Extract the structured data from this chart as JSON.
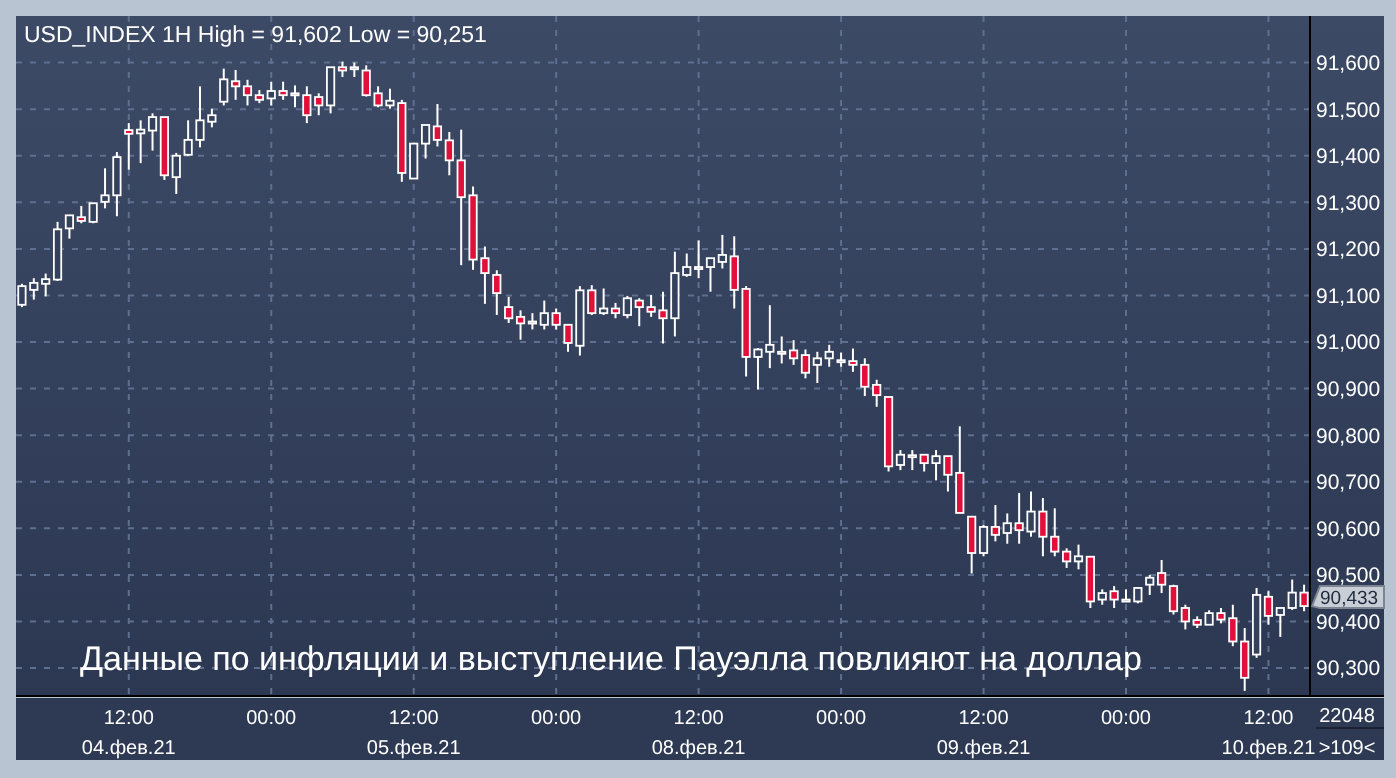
{
  "chart_data": {
    "type": "candlestick",
    "title": "USD_INDEX 1H High = 91,602 Low = 90,251",
    "categories": [
      null,
      null,
      null,
      null,
      null,
      null,
      null,
      null,
      null,
      "12:00\n04.фев.21",
      null,
      null,
      null,
      null,
      null,
      null,
      null,
      null,
      null,
      null,
      null,
      "00:00",
      null,
      null,
      null,
      null,
      null,
      null,
      null,
      null,
      null,
      null,
      null,
      "12:00\n05.фев.21",
      null,
      null,
      null,
      null,
      null,
      null,
      null,
      null,
      null,
      null,
      null,
      "00:00",
      null,
      null,
      null,
      null,
      null,
      null,
      null,
      null,
      null,
      null,
      null,
      "12:00\n08.фев.21",
      null,
      null,
      null,
      null,
      null,
      null,
      null,
      null,
      null,
      null,
      null,
      "00:00",
      null,
      null,
      null,
      null,
      null,
      null,
      null,
      null,
      null,
      null,
      null,
      "12:00\n09.фев.21",
      null,
      null,
      null,
      null,
      null,
      null,
      null,
      null,
      null,
      null,
      null,
      "00:00",
      null,
      null,
      null,
      null,
      null,
      null,
      null,
      null,
      null,
      null,
      null,
      "12:00\n10.фев.21",
      null,
      null,
      null
    ],
    "ohlc": [
      [
        91080,
        91125,
        91075,
        91120
      ],
      [
        91112,
        91137,
        91091,
        91127
      ],
      [
        91125,
        91147,
        91098,
        91135
      ],
      [
        91134,
        91258,
        91131,
        91242
      ],
      [
        91244,
        91273,
        91222,
        91272
      ],
      [
        91268,
        91292,
        91255,
        91260
      ],
      [
        91258,
        91299,
        91255,
        91298
      ],
      [
        91301,
        91373,
        91287,
        91315
      ],
      [
        91315,
        91408,
        91270,
        91397
      ],
      [
        91455,
        91470,
        91370,
        91447
      ],
      [
        91448,
        91476,
        91384,
        91456
      ],
      [
        91454,
        91491,
        91411,
        91483
      ],
      [
        91483,
        91483,
        91348,
        91358
      ],
      [
        91354,
        91406,
        91318,
        91400
      ],
      [
        91402,
        91476,
        91400,
        91434
      ],
      [
        91434,
        91549,
        91418,
        91476
      ],
      [
        91473,
        91501,
        91461,
        91487
      ],
      [
        91516,
        91587,
        91508,
        91564
      ],
      [
        91560,
        91584,
        91520,
        91549
      ],
      [
        91549,
        91563,
        91508,
        91530
      ],
      [
        91530,
        91541,
        91513,
        91520
      ],
      [
        91523,
        91559,
        91508,
        91539
      ],
      [
        91539,
        91559,
        91520,
        91530
      ],
      [
        91534,
        91551,
        91504,
        91530
      ],
      [
        91530,
        91549,
        91470,
        91487
      ],
      [
        91526,
        91534,
        91487,
        91508
      ],
      [
        91508,
        91590,
        91491,
        91590
      ],
      [
        91590,
        91602,
        91569,
        91583
      ],
      [
        91590,
        91600,
        91569,
        91590
      ],
      [
        91583,
        91594,
        91527,
        91530
      ],
      [
        91534,
        91549,
        91504,
        91508
      ],
      [
        91508,
        91544,
        91501,
        91518
      ],
      [
        91513,
        91520,
        91344,
        91363
      ],
      [
        91351,
        91426,
        91351,
        91426
      ],
      [
        91426,
        91466,
        91394,
        91466
      ],
      [
        91463,
        91511,
        91420,
        91434
      ],
      [
        91433,
        91451,
        91358,
        91390
      ],
      [
        91390,
        91456,
        91165,
        91311
      ],
      [
        91315,
        91334,
        91155,
        91177
      ],
      [
        91180,
        91205,
        91082,
        91148
      ],
      [
        91144,
        91154,
        91058,
        91105
      ],
      [
        91075,
        91097,
        91041,
        91051
      ],
      [
        91054,
        91068,
        91005,
        91040
      ],
      [
        91044,
        91062,
        91027,
        91044
      ],
      [
        91037,
        91089,
        91027,
        91062
      ],
      [
        91062,
        91072,
        91027,
        91037
      ],
      [
        91037,
        91037,
        90979,
        90998
      ],
      [
        90992,
        91120,
        90971,
        91111
      ],
      [
        91111,
        91122,
        91058,
        91062
      ],
      [
        91062,
        91115,
        91058,
        91072
      ],
      [
        91072,
        91084,
        91051,
        91062
      ],
      [
        91058,
        91099,
        91051,
        91094
      ],
      [
        91089,
        91094,
        91034,
        91075
      ],
      [
        91075,
        91101,
        91054,
        91065
      ],
      [
        91068,
        91108,
        90997,
        91051
      ],
      [
        91051,
        91194,
        91012,
        91148
      ],
      [
        91144,
        91190,
        91140,
        91161
      ],
      [
        91161,
        91218,
        91137,
        91161
      ],
      [
        91161,
        91180,
        91108,
        91180
      ],
      [
        91172,
        91230,
        91158,
        91187
      ],
      [
        91184,
        91227,
        91072,
        91112
      ],
      [
        91114,
        91120,
        90926,
        90968
      ],
      [
        90968,
        90987,
        90898,
        90984
      ],
      [
        90979,
        91079,
        90944,
        90994
      ],
      [
        90979,
        91012,
        90954,
        90979
      ],
      [
        90982,
        91004,
        90951,
        90965
      ],
      [
        90972,
        90984,
        90922,
        90934
      ],
      [
        90951,
        90979,
        90912,
        90965
      ],
      [
        90965,
        90994,
        90947,
        90979
      ],
      [
        90961,
        90977,
        90947,
        90961
      ],
      [
        90959,
        90986,
        90936,
        90951
      ],
      [
        90951,
        90965,
        90884,
        90904
      ],
      [
        90908,
        90919,
        90861,
        90886
      ],
      [
        90882,
        90882,
        90722,
        90733
      ],
      [
        90736,
        90768,
        90725,
        90758
      ],
      [
        90757,
        90768,
        90725,
        90757
      ],
      [
        90758,
        90758,
        90722,
        90740
      ],
      [
        90740,
        90768,
        90703,
        90755
      ],
      [
        90755,
        90755,
        90679,
        90715
      ],
      [
        90719,
        90819,
        90633,
        90633
      ],
      [
        90625,
        90625,
        90503,
        90547
      ],
      [
        90547,
        90607,
        90540,
        90603
      ],
      [
        90603,
        90650,
        90572,
        90586
      ],
      [
        90590,
        90632,
        90567,
        90611
      ],
      [
        90611,
        90676,
        90567,
        90596
      ],
      [
        90593,
        90679,
        90582,
        90636
      ],
      [
        90636,
        90665,
        90540,
        90582
      ],
      [
        90582,
        90643,
        90540,
        90550
      ],
      [
        90550,
        90557,
        90515,
        90529
      ],
      [
        90529,
        90565,
        90512,
        90540
      ],
      [
        90539,
        90539,
        90429,
        90443
      ],
      [
        90447,
        90469,
        90436,
        90461
      ],
      [
        90465,
        90476,
        90429,
        90447
      ],
      [
        90447,
        90469,
        90443,
        90447
      ],
      [
        90443,
        90472,
        90439,
        90472
      ],
      [
        90479,
        90500,
        90457,
        90494
      ],
      [
        90504,
        90532,
        90461,
        90479
      ],
      [
        90476,
        90479,
        90415,
        90422
      ],
      [
        90429,
        90436,
        90383,
        90400
      ],
      [
        90403,
        90411,
        90386,
        90393
      ],
      [
        90393,
        90424,
        90393,
        90418
      ],
      [
        90418,
        90429,
        90396,
        90404
      ],
      [
        90407,
        90436,
        90347,
        90357
      ],
      [
        90357,
        90386,
        90251,
        90279
      ],
      [
        90329,
        90472,
        90322,
        90457
      ],
      [
        90453,
        90465,
        90393,
        90412
      ],
      [
        90414,
        90429,
        90367,
        90429
      ],
      [
        90429,
        90490,
        90425,
        90462
      ],
      [
        90462,
        90479,
        90422,
        90433
      ]
    ],
    "ylim": [
      90240,
      91700
    ],
    "yticks": [
      {
        "value": 90300,
        "label": "90,300"
      },
      {
        "value": 90400,
        "label": "90,400"
      },
      {
        "value": 90500,
        "label": "90,500"
      },
      {
        "value": 90600,
        "label": "90,600"
      },
      {
        "value": 90700,
        "label": "90,700"
      },
      {
        "value": 90800,
        "label": "90,800"
      },
      {
        "value": 90900,
        "label": "90,900"
      },
      {
        "value": 91000,
        "label": "91,000"
      },
      {
        "value": 91100,
        "label": "91,100"
      },
      {
        "value": 91200,
        "label": "91,200"
      },
      {
        "value": 91300,
        "label": "91,300"
      },
      {
        "value": 91400,
        "label": "91,400"
      },
      {
        "value": 91500,
        "label": "91,500"
      },
      {
        "value": 91600,
        "label": "91,600"
      }
    ],
    "grid": true,
    "annotations": [
      "Данные по инфляции и выступление Пауэлла повлияют на доллар",
      "90,433",
      "22048",
      ">109<"
    ]
  }
}
